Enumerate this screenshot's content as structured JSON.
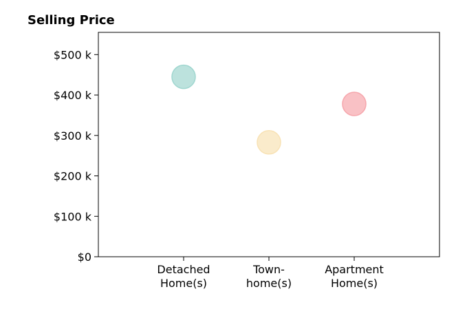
{
  "chart_data": {
    "type": "scatter",
    "title": "Selling Price",
    "xlabel": "",
    "ylabel": "",
    "categories": [
      [
        "Detached",
        "Home(s)"
      ],
      [
        "Town-",
        "home(s)"
      ],
      [
        "Apartment",
        "Home(s)"
      ]
    ],
    "values": [
      445000,
      283000,
      378000
    ],
    "ylim": [
      0,
      555000
    ],
    "xlim": [
      0,
      4
    ],
    "y_ticks": [
      0,
      100000,
      200000,
      300000,
      400000,
      500000
    ],
    "y_tick_labels": [
      "$0",
      "$100 k",
      "$200 k",
      "$300 k",
      "$400 k",
      "$500 k"
    ],
    "colors": [
      "#9fd6cf",
      "#f8e2b5",
      "#f6a6ac"
    ],
    "grid": false,
    "legend": "none"
  }
}
